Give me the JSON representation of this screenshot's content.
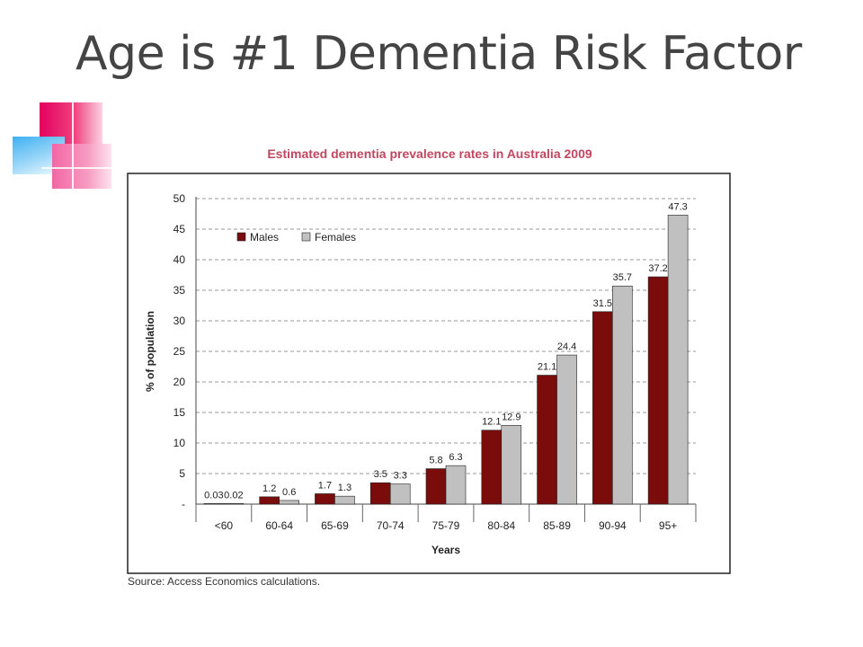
{
  "slide": {
    "title": "Age is #1 Dementia Risk Factor"
  },
  "chart_data": {
    "type": "bar",
    "title": "Estimated dementia prevalence rates in Australia 2009",
    "xlabel": "Years",
    "ylabel": "% of population",
    "ylim": [
      0,
      50
    ],
    "yticks": [
      50,
      45,
      40,
      35,
      30,
      25,
      20,
      15,
      10,
      5
    ],
    "ytick_zero_label": "-",
    "grid": true,
    "legend": "top-left",
    "categories": [
      "<60",
      "60-64",
      "65-69",
      "70-74",
      "75-79",
      "80-84",
      "85-89",
      "90-94",
      "95+"
    ],
    "series": [
      {
        "name": "Males",
        "color": "#7b0c0c",
        "values": [
          0.03,
          1.2,
          1.7,
          3.5,
          5.8,
          12.1,
          21.1,
          31.5,
          37.2
        ]
      },
      {
        "name": "Females",
        "color": "#c0c0c0",
        "values": [
          0.02,
          0.6,
          1.3,
          3.3,
          6.3,
          12.9,
          24.4,
          35.7,
          47.3
        ]
      }
    ],
    "source": "Source: Access Economics calculations."
  }
}
